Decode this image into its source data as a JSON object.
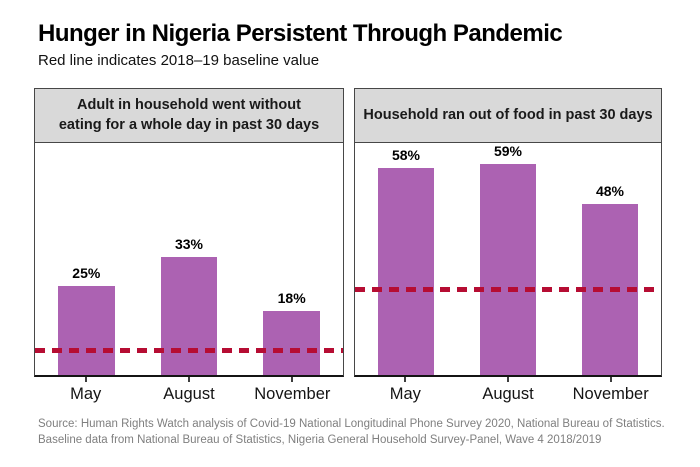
{
  "title": "Hunger in Nigeria Persistent Through Pandemic",
  "subtitle": "Red line indicates 2018–19 baseline value",
  "source": {
    "line1": "Source: Human Rights Watch analysis of Covid-19 National Longitudinal Phone Survey 2020, National Bureau of Statistics.",
    "line2": "Baseline data from National Bureau of Statistics, Nigeria General Household Survey-Panel, Wave 4 2018/2019"
  },
  "colors": {
    "bar": "#AC62B2",
    "baseline_red": "#B60D33",
    "panel_header_bg": "#D9D9D9",
    "panel_border": "#474747",
    "axis": "#141414",
    "source_text": "#7F7F7F"
  },
  "chart_data": [
    {
      "type": "bar",
      "title": "Adult in household went without\neating for a whole day in past 30 days",
      "categories": [
        "May",
        "August",
        "November"
      ],
      "values": [
        25,
        33,
        18
      ],
      "value_labels": [
        "25%",
        "33%",
        "18%"
      ],
      "baseline_value": 7,
      "ylim": [
        0,
        65
      ],
      "grid": false,
      "legend": "none"
    },
    {
      "type": "bar",
      "title": "Household ran out of food in past 30 days",
      "categories": [
        "May",
        "August",
        "November"
      ],
      "values": [
        58,
        59,
        48
      ],
      "value_labels": [
        "58%",
        "59%",
        "48%"
      ],
      "baseline_value": 24,
      "ylim": [
        0,
        65
      ],
      "grid": false,
      "legend": "none"
    }
  ]
}
